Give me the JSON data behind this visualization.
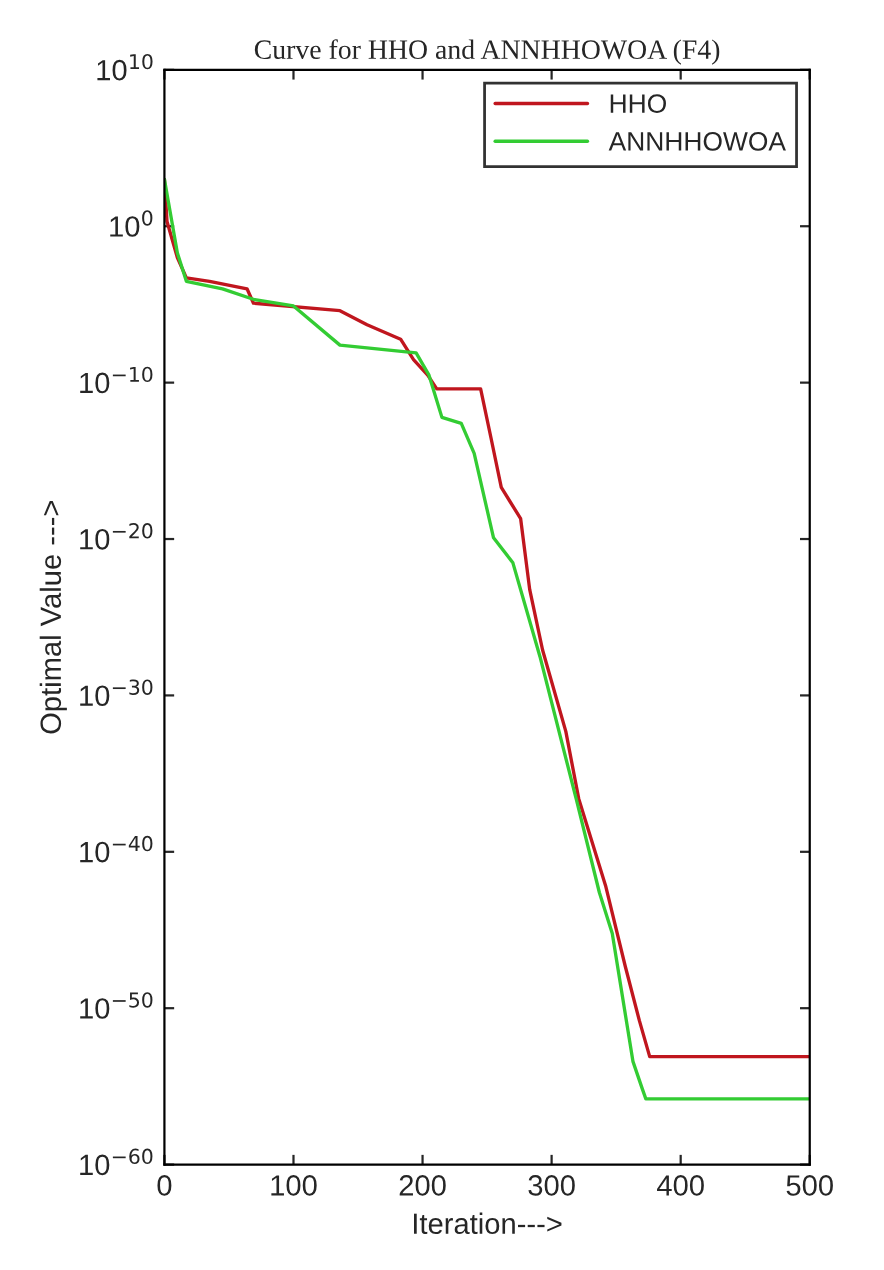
{
  "chart_data": {
    "type": "line",
    "title": "Curve for HHO and ANNHHOWOA (F4)",
    "xlabel": "Iteration--->",
    "ylabel": "Optimal Value --->",
    "log": true,
    "grid": false,
    "legend": "top right",
    "line_style": "solid",
    "marker": "none",
    "xlim": [
      0,
      500
    ],
    "xticks": [
      0,
      100,
      200,
      300,
      400,
      500
    ],
    "ylim": [
      1e-60,
      10000000000.0
    ],
    "yticks": [
      {
        "value": 1e-60,
        "label": "10$^{−60}$"
      },
      {
        "value": 1e-50,
        "label": "10$^{−50}$"
      },
      {
        "value": 1e-40,
        "label": "10$^{−40}$"
      },
      {
        "value": 1e-30,
        "label": "10$^{−30}$"
      },
      {
        "value": 1e-20,
        "label": "10$^{−20}$"
      },
      {
        "value": 1e-10,
        "label": "10$^{−10}$"
      },
      {
        "value": 1,
        "label": "10$^{0}$"
      },
      {
        "value": 10000000000.0,
        "label": "10$^{10}$"
      }
    ],
    "series": [
      {
        "name": "HHO",
        "color": "#c0161e",
        "x": [
          0,
          2,
          10,
          17,
          35,
          64,
          69,
          136,
          157,
          183,
          193,
          204,
          211,
          245,
          253,
          261,
          276,
          283,
          293,
          311,
          321,
          342,
          357,
          368,
          376,
          500
        ],
        "values": [
          1000.0,
          2,
          0.01,
          0.0005,
          0.0003,
          0.0001,
          1.2e-05,
          4e-06,
          5e-07,
          6e-08,
          3e-09,
          3e-10,
          4e-11,
          4e-11,
          3e-14,
          2e-17,
          2e-19,
          6e-24,
          8e-28,
          5e-33,
          2.5e-37,
          6e-43,
          5e-48,
          1.6e-51,
          8e-54,
          8e-54
        ]
      },
      {
        "name": "ANNHHOWOA",
        "color": "#33cc33",
        "x": [
          0,
          10,
          17,
          45,
          70,
          100,
          136,
          195,
          205,
          215,
          230,
          240,
          255,
          270,
          291,
          319,
          337,
          347,
          363,
          370,
          373,
          500
        ],
        "values": [
          1000.0,
          0.02,
          0.0003,
          0.0001,
          2e-05,
          8e-06,
          2.5e-08,
          8e-09,
          3e-10,
          6e-13,
          2.5e-13,
          3e-15,
          1.2e-20,
          3e-22,
          3e-28,
          2.5e-37,
          2.5e-43,
          6e-46,
          4e-54,
          8e-56,
          1.6e-56,
          1.6e-56
        ]
      }
    ]
  }
}
